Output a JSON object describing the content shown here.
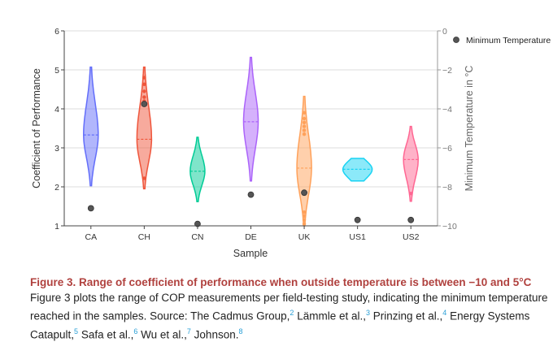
{
  "chart_data": {
    "type": "violin",
    "xlabel": "Sample",
    "ylabel": "Coefficient of Performance",
    "y2label": "Minimum Temperature in °C",
    "ylim": [
      1,
      6
    ],
    "y2lim": [
      -10,
      0
    ],
    "yticks": [
      1,
      2,
      3,
      4,
      5,
      6
    ],
    "y2ticks": [
      0,
      -2,
      -4,
      -6,
      -8,
      -10
    ],
    "y2ticklabels": [
      "0",
      "−2",
      "−4",
      "−6",
      "−8",
      "−10"
    ],
    "grid": true,
    "legend": {
      "position": "top-right",
      "entries": [
        "Minimum Temperature"
      ]
    },
    "categories": [
      "CA",
      "CH",
      "CN",
      "DE",
      "UK",
      "US1",
      "US2"
    ],
    "violins": [
      {
        "name": "CA",
        "color": "#636efa",
        "min": 2.03,
        "max": 5.07,
        "median": 3.33,
        "points": []
      },
      {
        "name": "CH",
        "color": "#ef553b",
        "min": 1.95,
        "max": 5.07,
        "median": 3.22,
        "points": [
          4.8,
          4.63,
          4.45,
          4.3,
          4.2,
          2.22
        ]
      },
      {
        "name": "CN",
        "color": "#00cc96",
        "min": 1.62,
        "max": 3.27,
        "median": 2.4,
        "points": []
      },
      {
        "name": "DE",
        "color": "#ab63fa",
        "min": 2.15,
        "max": 5.32,
        "median": 3.67,
        "points": []
      },
      {
        "name": "UK",
        "color": "#ffa15a",
        "min": 1.0,
        "max": 4.32,
        "median": 2.48,
        "points": [
          3.9,
          3.75,
          3.65,
          3.55,
          3.45,
          3.35,
          1.35,
          1.25,
          1.15,
          1.05
        ]
      },
      {
        "name": "US1",
        "color": "#19d3f3",
        "min": 2.15,
        "max": 2.73,
        "median": 2.45,
        "points": []
      },
      {
        "name": "US2",
        "color": "#ff6692",
        "min": 1.63,
        "max": 3.55,
        "median": 2.7,
        "points": [
          1.83
        ]
      }
    ],
    "min_temperature": {
      "name": "Minimum Temperature",
      "color": "#555555",
      "values": [
        -9.1,
        -3.75,
        -9.9,
        -8.4,
        -8.3,
        -9.7,
        -9.7
      ]
    }
  },
  "caption": {
    "title": "Figure 3.  Range of coefficient of performance when outside temperature is between −10 and 5°C",
    "body_1": "Figure 3 plots the range of COP measurements per field-testing study, indicating the minimum temperature reached in the samples. Source: The Cadmus Group,",
    "ref_1": "2",
    "body_2": " Lämmle et al.,",
    "ref_2": "3",
    "body_3": " Prinzing et al.,",
    "ref_3": "4",
    "body_4": " Energy Systems Catapult,",
    "ref_4": "5",
    "body_5": " Safa et al.,",
    "ref_5": "6",
    "body_6": " Wu et al.,",
    "ref_6": "7",
    "body_7": " Johnson.",
    "ref_7": "8"
  }
}
